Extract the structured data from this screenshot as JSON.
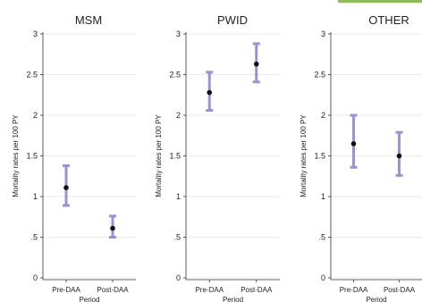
{
  "chart_data": [
    {
      "type": "errorbar",
      "title": "MSM",
      "xlabel": "Period",
      "ylabel": "Mortality rates per 100 PY",
      "categories": [
        "Pre-DAA",
        "Post-DAA"
      ],
      "ylim": [
        0,
        3
      ],
      "yticks": [
        "0",
        ".5",
        "1",
        "1.5",
        "2",
        "2.5",
        "3"
      ],
      "grid": true,
      "points": [
        {
          "x": "Pre-DAA",
          "estimate": 1.11,
          "lower": 0.89,
          "upper": 1.38
        },
        {
          "x": "Post-DAA",
          "estimate": 0.61,
          "lower": 0.5,
          "upper": 0.76
        }
      ]
    },
    {
      "type": "errorbar",
      "title": "PWID",
      "xlabel": "Period",
      "ylabel": "Mortality rates per 100 PY",
      "categories": [
        "Pre-DAA",
        "Post-DAA"
      ],
      "ylim": [
        0,
        3
      ],
      "yticks": [
        "0",
        ".5",
        "1",
        "1.5",
        "2",
        "2.5",
        "3"
      ],
      "grid": true,
      "points": [
        {
          "x": "Pre-DAA",
          "estimate": 2.28,
          "lower": 2.06,
          "upper": 2.53
        },
        {
          "x": "Post-DAA",
          "estimate": 2.63,
          "lower": 2.41,
          "upper": 2.88
        }
      ]
    },
    {
      "type": "errorbar",
      "title": "OTHER",
      "xlabel": "Period",
      "ylabel": "Mortality rates per 100 PY",
      "categories": [
        "Pre-DAA",
        "Post-DAA"
      ],
      "ylim": [
        0,
        3
      ],
      "yticks": [
        "0",
        ".5",
        "1",
        "1.5",
        "2",
        "2.5",
        "3"
      ],
      "grid": true,
      "points": [
        {
          "x": "Pre-DAA",
          "estimate": 1.65,
          "lower": 1.36,
          "upper": 2.0
        },
        {
          "x": "Post-DAA",
          "estimate": 1.5,
          "lower": 1.26,
          "upper": 1.79
        }
      ]
    }
  ],
  "colors": {
    "ci_bar": "#9b93d1",
    "point": "#111111",
    "accent_strip": "#8dbb62"
  }
}
